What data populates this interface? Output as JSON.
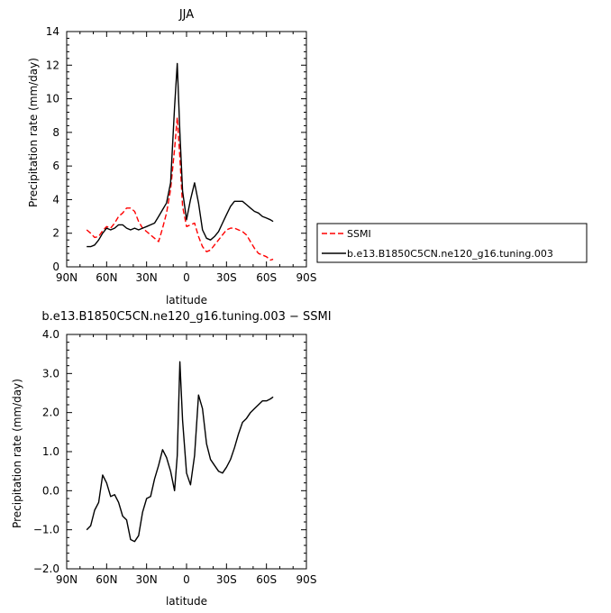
{
  "chart_data": [
    {
      "type": "line",
      "title": "JJA",
      "xlabel": "latitude",
      "ylabel": "Precipitation rate (mm/day)",
      "xlim": [
        -90,
        90
      ],
      "ylim": [
        0,
        14
      ],
      "x_ticks": [
        -90,
        -60,
        -30,
        0,
        30,
        60,
        90
      ],
      "x_tick_labels": [
        "90N",
        "60N",
        "30N",
        "0",
        "30S",
        "60S",
        "90S"
      ],
      "y_ticks": [
        0,
        2,
        4,
        6,
        8,
        10,
        12,
        14
      ],
      "y_tick_labels": [
        "0",
        "2",
        "4",
        "6",
        "8",
        "10",
        "12",
        "14"
      ],
      "legend_placement": "right",
      "series": [
        {
          "name": "SSMI",
          "color": "#ff0000",
          "dash": true,
          "x": [
            -75,
            -72,
            -69,
            -66,
            -63,
            -60,
            -57,
            -54,
            -51,
            -48,
            -45,
            -42,
            -39,
            -36,
            -33,
            -30,
            -27,
            -24,
            -21,
            -18,
            -15,
            -12,
            -9,
            -7,
            -5,
            -3,
            0,
            3,
            6,
            9,
            12,
            15,
            18,
            21,
            24,
            27,
            30,
            33,
            36,
            39,
            42,
            45,
            48,
            51,
            54,
            57,
            60,
            63,
            65
          ],
          "y": [
            2.2,
            2.0,
            1.75,
            1.8,
            2.15,
            2.4,
            2.3,
            2.6,
            3.0,
            3.2,
            3.5,
            3.5,
            3.3,
            2.7,
            2.3,
            2.1,
            1.9,
            1.7,
            1.5,
            2.3,
            3.2,
            4.6,
            7.0,
            8.9,
            6.5,
            3.6,
            2.4,
            2.5,
            2.6,
            1.8,
            1.2,
            0.9,
            1.0,
            1.3,
            1.6,
            1.9,
            2.2,
            2.3,
            2.3,
            2.2,
            2.1,
            1.9,
            1.5,
            1.1,
            0.8,
            0.7,
            0.6,
            0.4,
            0.45
          ]
        },
        {
          "name": "b.e13.B1850C5CN.ne120_g16.tuning.003",
          "color": "#000000",
          "dash": false,
          "x": [
            -75,
            -72,
            -69,
            -66,
            -63,
            -60,
            -57,
            -54,
            -51,
            -48,
            -45,
            -42,
            -39,
            -36,
            -33,
            -30,
            -27,
            -24,
            -21,
            -18,
            -15,
            -12,
            -9,
            -7,
            -5,
            -3,
            0,
            3,
            6,
            9,
            12,
            15,
            18,
            21,
            24,
            27,
            30,
            33,
            36,
            39,
            42,
            45,
            48,
            51,
            54,
            57,
            60,
            63,
            65
          ],
          "y": [
            1.2,
            1.2,
            1.3,
            1.6,
            2.0,
            2.3,
            2.2,
            2.3,
            2.5,
            2.5,
            2.3,
            2.2,
            2.3,
            2.2,
            2.3,
            2.4,
            2.5,
            2.6,
            3.0,
            3.4,
            3.8,
            5.0,
            9.5,
            12.1,
            8.0,
            4.5,
            2.8,
            4.0,
            5.0,
            3.8,
            2.2,
            1.7,
            1.6,
            1.8,
            2.1,
            2.6,
            3.1,
            3.6,
            3.9,
            3.9,
            3.9,
            3.7,
            3.5,
            3.3,
            3.2,
            3.0,
            2.9,
            2.8,
            2.7
          ]
        }
      ]
    },
    {
      "type": "line",
      "title": "b.e13.B1850C5CN.ne120_g16.tuning.003 − SSMI",
      "xlabel": "latitude",
      "ylabel": "Precipitation rate (mm/day)",
      "xlim": [
        -90,
        90
      ],
      "ylim": [
        -2,
        4
      ],
      "x_ticks": [
        -90,
        -60,
        -30,
        0,
        30,
        60,
        90
      ],
      "x_tick_labels": [
        "90N",
        "60N",
        "30N",
        "0",
        "30S",
        "60S",
        "90S"
      ],
      "y_ticks": [
        -2,
        -1,
        0,
        1,
        2,
        3,
        4
      ],
      "y_tick_labels": [
        "−2.0",
        "−1.0",
        "0.0",
        "1.0",
        "2.0",
        "3.0",
        "4.0"
      ],
      "series": [
        {
          "color": "#000000",
          "dash": false,
          "x": [
            -75,
            -72,
            -69,
            -66,
            -63,
            -60,
            -57,
            -54,
            -51,
            -48,
            -45,
            -42,
            -39,
            -36,
            -33,
            -30,
            -27,
            -24,
            -21,
            -18,
            -15,
            -12,
            -9,
            -7,
            -5,
            -3,
            0,
            3,
            6,
            9,
            12,
            15,
            18,
            21,
            24,
            27,
            30,
            33,
            36,
            39,
            42,
            45,
            48,
            51,
            54,
            57,
            60,
            63,
            65
          ],
          "y": [
            -1.0,
            -0.9,
            -0.5,
            -0.3,
            0.4,
            0.2,
            -0.15,
            -0.1,
            -0.3,
            -0.65,
            -0.75,
            -1.25,
            -1.3,
            -1.15,
            -0.55,
            -0.2,
            -0.15,
            0.3,
            0.65,
            1.05,
            0.85,
            0.5,
            0.0,
            0.9,
            3.3,
            1.8,
            0.45,
            0.15,
            0.9,
            2.45,
            2.1,
            1.2,
            0.8,
            0.65,
            0.5,
            0.45,
            0.6,
            0.8,
            1.1,
            1.45,
            1.75,
            1.85,
            2.0,
            2.1,
            2.2,
            2.3,
            2.3,
            2.35,
            2.4
          ]
        }
      ]
    }
  ]
}
